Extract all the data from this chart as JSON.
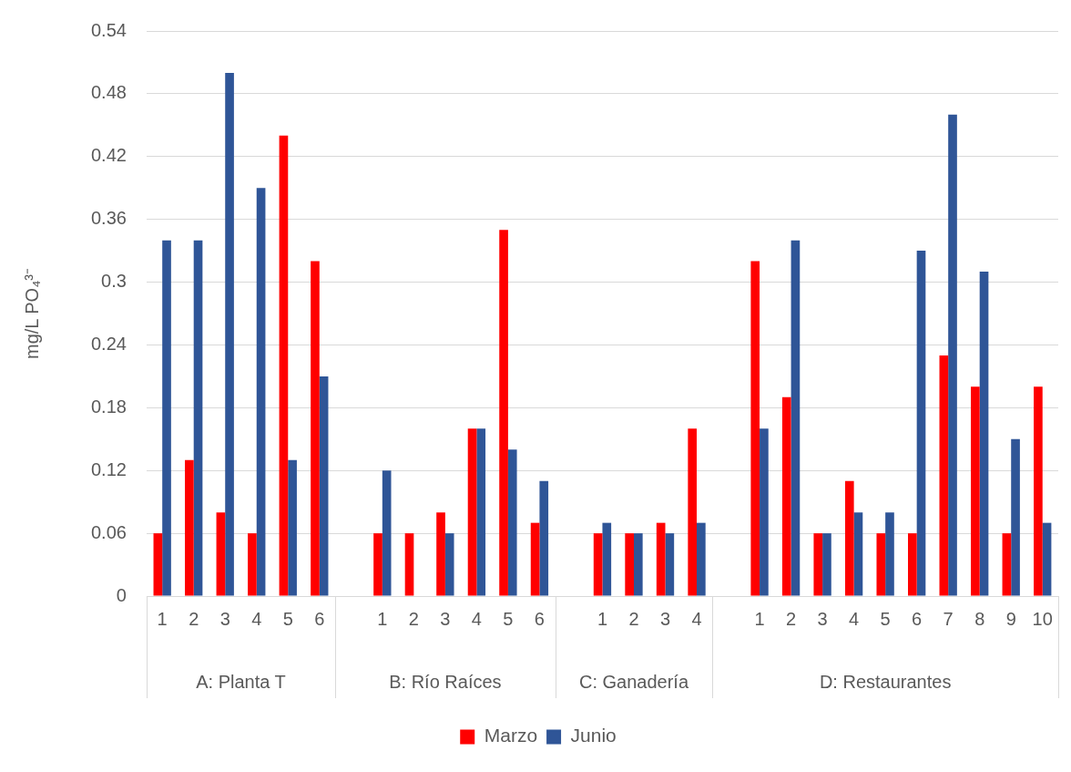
{
  "chart_data": {
    "type": "bar",
    "ylabel": "mg/L PO₄³⁻",
    "categories": [
      "1",
      "2",
      "3",
      "4",
      "5",
      "6",
      null,
      "1",
      "2",
      "3",
      "4",
      "5",
      "6",
      null,
      "1",
      "2",
      "3",
      "4",
      null,
      "1",
      "2",
      "3",
      "4",
      "5",
      "6",
      "7",
      "8",
      "9",
      "10"
    ],
    "series": [
      {
        "name": "Marzo",
        "color": "#ff0000",
        "values": [
          0.06,
          0.13,
          0.08,
          0.06,
          0.44,
          0.32,
          null,
          0.06,
          0.06,
          0.08,
          0.16,
          0.35,
          0.07,
          null,
          0.06,
          0.06,
          0.07,
          0.16,
          null,
          0.32,
          0.19,
          0.06,
          0.11,
          0.06,
          0.06,
          0.23,
          0.2,
          0.06,
          0.2
        ]
      },
      {
        "name": "Junio",
        "color": "#2f5597",
        "values": [
          0.34,
          0.34,
          0.5,
          0.39,
          0.13,
          0.21,
          null,
          0.12,
          null,
          0.06,
          0.16,
          0.14,
          0.11,
          null,
          0.07,
          0.06,
          0.06,
          0.07,
          null,
          0.16,
          0.34,
          0.06,
          0.08,
          0.08,
          0.33,
          0.46,
          0.31,
          0.15,
          0.07
        ]
      }
    ],
    "annotations": [
      "A: Planta T",
      "B: Río Raíces",
      "C: Ganadería",
      "D: Restaurantes"
    ],
    "ylim": [
      0,
      0.54
    ],
    "yticks": [
      0,
      0.06,
      0.12,
      0.18,
      0.24,
      0.3,
      0.36,
      0.42,
      0.48,
      0.54
    ],
    "grid": "y",
    "legend": "bottom"
  }
}
